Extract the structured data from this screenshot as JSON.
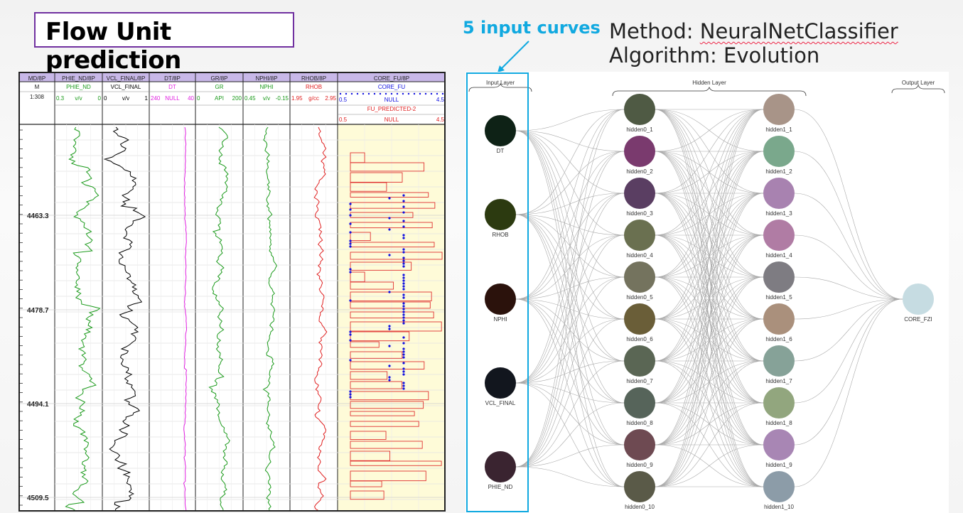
{
  "title": "Flow Unit prediction",
  "input_curves_label": "5 input curves",
  "method_line": "Method: ",
  "method_value": "NeuralNetClassifier",
  "algorithm_line": "Algorithm: Evolution",
  "log_panel": {
    "depth_header": "MD/8P",
    "depth_unit": "M",
    "depth_scale": "1:308",
    "depth_ticks": [
      "4463.3",
      "4478.7",
      "4494.1",
      "4509.5"
    ],
    "tracks": [
      {
        "header": "PHIE_ND/8P",
        "curve": "PHIE_ND",
        "min": "0.3",
        "unit": "v/v",
        "max": "0",
        "color": "#1a9a1a"
      },
      {
        "header": "VCL_FINAL/8P",
        "curve": "VCL_FINAL",
        "min": "0",
        "unit": "v/v",
        "max": "1",
        "color": "#000000"
      },
      {
        "header": "DT/8P",
        "curve": "DT",
        "min": "240",
        "unit": "NULL",
        "max": "40",
        "color": "#e020e0"
      },
      {
        "header": "GR/8P",
        "curve": "GR",
        "min": "0",
        "unit": "API",
        "max": "200",
        "color": "#1a9a1a"
      },
      {
        "header": "NPHI/8P",
        "curve": "NPHI",
        "min": "0.45",
        "unit": "v/v",
        "max": "-0.15",
        "color": "#1a9a1a"
      },
      {
        "header": "RHOB/8P",
        "curve": "RHOB",
        "min": "1.95",
        "unit": "g/cc",
        "max": "2.95",
        "color": "#e02020"
      }
    ],
    "core_track": {
      "header": "CORE_FU/8P",
      "curve1": "CORE_FU",
      "c1_min": "0.5",
      "c1_unit": "NULL",
      "c1_max": "4.5",
      "c1_color": "#1010e0",
      "curve2": "FU_PREDICTED-2",
      "c2_min": "0.5",
      "c2_unit": "NULL",
      "c2_max": "4.5",
      "c2_color": "#e02020"
    }
  },
  "network": {
    "input_layer_label": "Input Layer",
    "hidden_layer_label": "Hidden Layer",
    "output_layer_label": "Output Layer",
    "inputs": [
      {
        "name": "DT",
        "color": "#0e2216"
      },
      {
        "name": "RHOB",
        "color": "#2c3a10"
      },
      {
        "name": "NPHI",
        "color": "#2b120c"
      },
      {
        "name": "VCL_FINAL",
        "color": "#12161e"
      },
      {
        "name": "PHIE_ND",
        "color": "#3a2430"
      }
    ],
    "hidden0": [
      {
        "name": "hidden0_1",
        "color": "#4f5a44"
      },
      {
        "name": "hidden0_2",
        "color": "#7a3a6e"
      },
      {
        "name": "hidden0_3",
        "color": "#5a3e62"
      },
      {
        "name": "hidden0_4",
        "color": "#6a7050"
      },
      {
        "name": "hidden0_5",
        "color": "#74735e"
      },
      {
        "name": "hidden0_6",
        "color": "#6a5e38"
      },
      {
        "name": "hidden0_7",
        "color": "#5a6654"
      },
      {
        "name": "hidden0_8",
        "color": "#56645a"
      },
      {
        "name": "hidden0_9",
        "color": "#6e4a52"
      },
      {
        "name": "hidden0_10",
        "color": "#5a5a48"
      }
    ],
    "hidden1": [
      {
        "name": "hidden1_1",
        "color": "#a89488"
      },
      {
        "name": "hidden1_2",
        "color": "#7aa88c"
      },
      {
        "name": "hidden1_3",
        "color": "#a882b0"
      },
      {
        "name": "hidden1_4",
        "color": "#b07ca4"
      },
      {
        "name": "hidden1_5",
        "color": "#7e7c82"
      },
      {
        "name": "hidden1_6",
        "color": "#aa907c"
      },
      {
        "name": "hidden1_7",
        "color": "#86a298"
      },
      {
        "name": "hidden1_8",
        "color": "#92a67e"
      },
      {
        "name": "hidden1_9",
        "color": "#a886b4"
      },
      {
        "name": "hidden1_10",
        "color": "#8c9ca8"
      }
    ],
    "outputs": [
      {
        "name": "CORE_FZI",
        "color": "#c6dce2"
      }
    ]
  }
}
